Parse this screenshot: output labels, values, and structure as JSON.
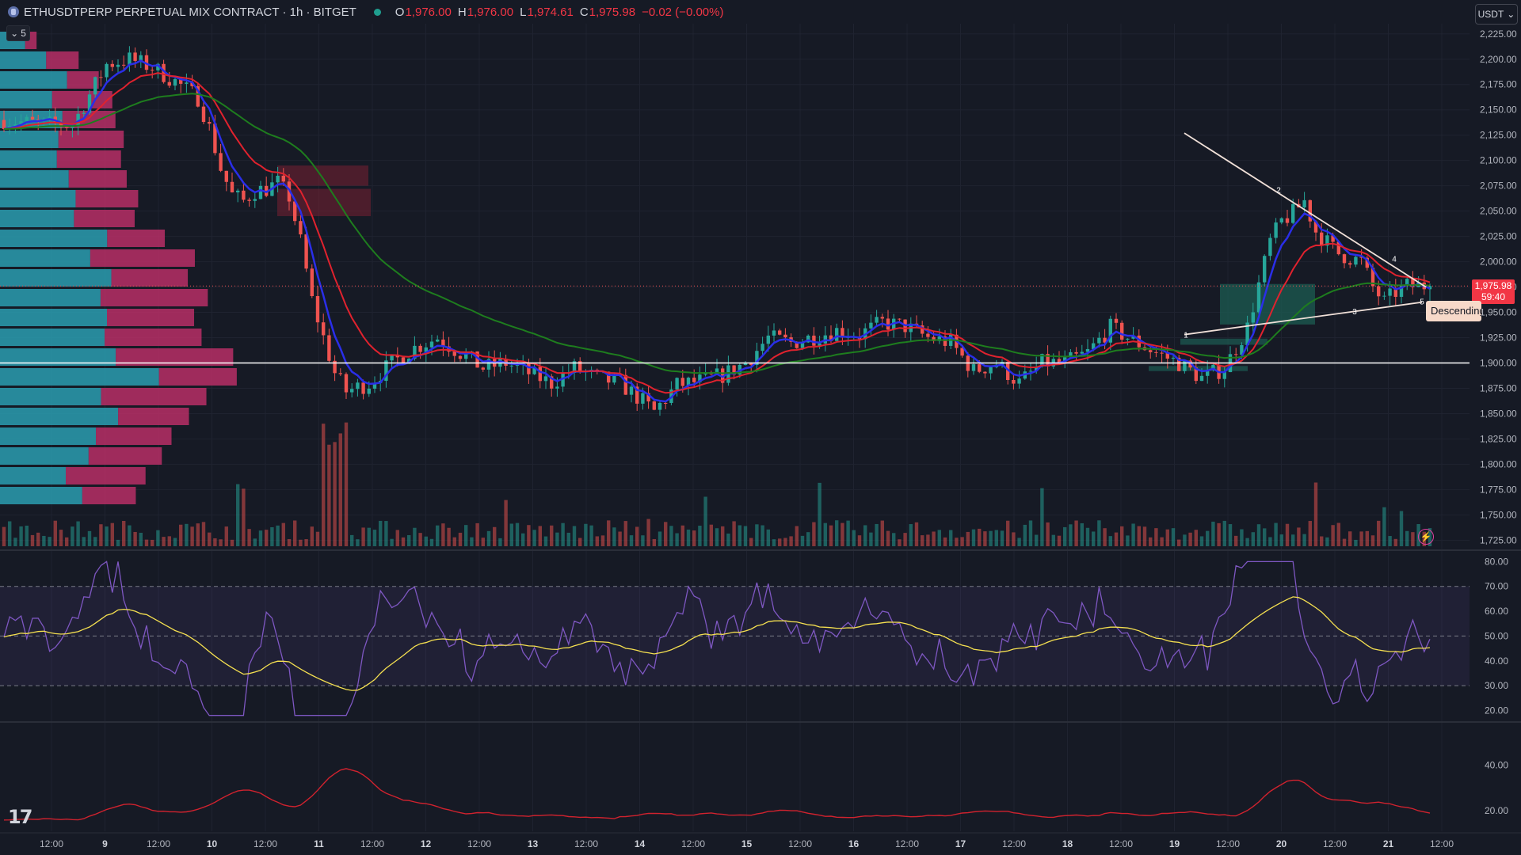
{
  "header": {
    "title": "ETHUSDTPERP PERPETUAL MIX CONTRACT · 1h · BITGET",
    "o_label": "O",
    "o_value": "1,976.00",
    "h_label": "H",
    "h_value": "1,976.00",
    "l_label": "L",
    "l_value": "1,974.61",
    "c_label": "C",
    "c_value": "1,975.98",
    "change": "−0.02 (−0.00%)"
  },
  "controls": {
    "collapse_count": "5",
    "currency": "USDT"
  },
  "price_badge": {
    "price": "1,975.98",
    "countdown": "59:40"
  },
  "pattern_label": "Descending",
  "colors": {
    "background": "#161a25",
    "up": "#26a69a",
    "down": "#ef5350",
    "ema_fast": "#2a2ee8",
    "ema_mid": "#e0222e",
    "ema_slow": "#1e7d1e",
    "rsi": "#7e57c2",
    "rsi_ma": "#f5e050",
    "lower_line": "#d0222e"
  },
  "chart_data": [
    {
      "type": "candlestick",
      "id": "price",
      "price_axis": [
        "2,225.00",
        "2,200.00",
        "2,175.00",
        "2,150.00",
        "2,125.00",
        "2,100.00",
        "2,075.00",
        "2,050.00",
        "2,025.00",
        "2,000.00",
        "1,975.00",
        "1,950.00",
        "1,925.00",
        "1,900.00",
        "1,875.00",
        "1,850.00",
        "1,825.00",
        "1,800.00",
        "1,775.00",
        "1,750.00",
        "1,725.00"
      ],
      "ylim": [
        1719,
        2235
      ],
      "time_axis": [
        "12:00",
        "9",
        "12:00",
        "10",
        "12:00",
        "11",
        "12:00",
        "12",
        "12:00",
        "13",
        "12:00",
        "14",
        "12:00",
        "15",
        "12:00",
        "16",
        "12:00",
        "17",
        "12:00",
        "18",
        "12:00",
        "19",
        "12:00",
        "20",
        "12:00",
        "21",
        "12:00"
      ],
      "price_path": [
        [
          0,
          2140
        ],
        [
          6,
          2136
        ],
        [
          12,
          2135
        ],
        [
          18,
          2195
        ],
        [
          22,
          2200
        ],
        [
          26,
          2192
        ],
        [
          30,
          2178
        ],
        [
          34,
          2162
        ],
        [
          36,
          2132
        ],
        [
          38,
          2092
        ],
        [
          40,
          2066
        ],
        [
          42,
          2060
        ],
        [
          44,
          2070
        ],
        [
          46,
          2072
        ],
        [
          48,
          2078
        ],
        [
          50,
          2064
        ],
        [
          52,
          2020
        ],
        [
          54,
          1962
        ],
        [
          56,
          1925
        ],
        [
          58,
          1890
        ],
        [
          60,
          1872
        ],
        [
          64,
          1880
        ],
        [
          68,
          1900
        ],
        [
          72,
          1915
        ],
        [
          76,
          1925
        ],
        [
          80,
          1910
        ],
        [
          84,
          1895
        ],
        [
          88,
          1900
        ],
        [
          92,
          1890
        ],
        [
          96,
          1880
        ],
        [
          100,
          1895
        ],
        [
          104,
          1885
        ],
        [
          108,
          1880
        ],
        [
          112,
          1862
        ],
        [
          114,
          1852
        ],
        [
          118,
          1878
        ],
        [
          122,
          1882
        ],
        [
          126,
          1888
        ],
        [
          130,
          1900
        ],
        [
          134,
          1925
        ],
        [
          138,
          1920
        ],
        [
          142,
          1926
        ],
        [
          146,
          1932
        ],
        [
          150,
          1928
        ],
        [
          154,
          1940
        ],
        [
          158,
          1936
        ],
        [
          162,
          1925
        ],
        [
          166,
          1920
        ],
        [
          170,
          1892
        ],
        [
          174,
          1900
        ],
        [
          178,
          1880
        ],
        [
          182,
          1900
        ],
        [
          186,
          1900
        ],
        [
          190,
          1910
        ],
        [
          194,
          1935
        ],
        [
          198,
          1922
        ],
        [
          202,
          1910
        ],
        [
          206,
          1900
        ],
        [
          210,
          1885
        ],
        [
          214,
          1895
        ],
        [
          218,
          1935
        ],
        [
          222,
          2020
        ],
        [
          224,
          2040
        ],
        [
          226,
          2048
        ],
        [
          228,
          2060
        ],
        [
          230,
          2030
        ],
        [
          234,
          2008
        ],
        [
          238,
          2000
        ],
        [
          240,
          1975
        ],
        [
          242,
          1960
        ],
        [
          244,
          1970
        ],
        [
          246,
          1976
        ],
        [
          248,
          1976
        ],
        [
          250,
          1977
        ]
      ],
      "ema_fast_period": "",
      "horizontal_line": 1900,
      "current_price_line": 1976,
      "triangle": {
        "upper": [
          [
            0.1495,
            2127
          ],
          [
            0.1665,
            2085
          ],
          [
            0.2094,
            2060
          ],
          [
            0.2353,
            2000
          ]
        ],
        "lower": [
          [
            0.149,
            1928
          ],
          [
            0.1751,
            1950
          ],
          [
            0.2302,
            1960
          ]
        ],
        "point_labels": [
          "1",
          "2",
          "3",
          "4",
          "5"
        ]
      }
    },
    {
      "type": "line",
      "id": "rsi",
      "axis": [
        "80.00",
        "70.00",
        "60.00",
        "50.00",
        "40.00",
        "30.00",
        "20.00"
      ],
      "ylim": [
        16,
        83
      ],
      "bands": [
        30,
        50,
        70
      ]
    },
    {
      "type": "line",
      "id": "lower_indicator",
      "axis": [
        "40.00",
        "20.00"
      ],
      "ylim": [
        11,
        58
      ]
    }
  ]
}
